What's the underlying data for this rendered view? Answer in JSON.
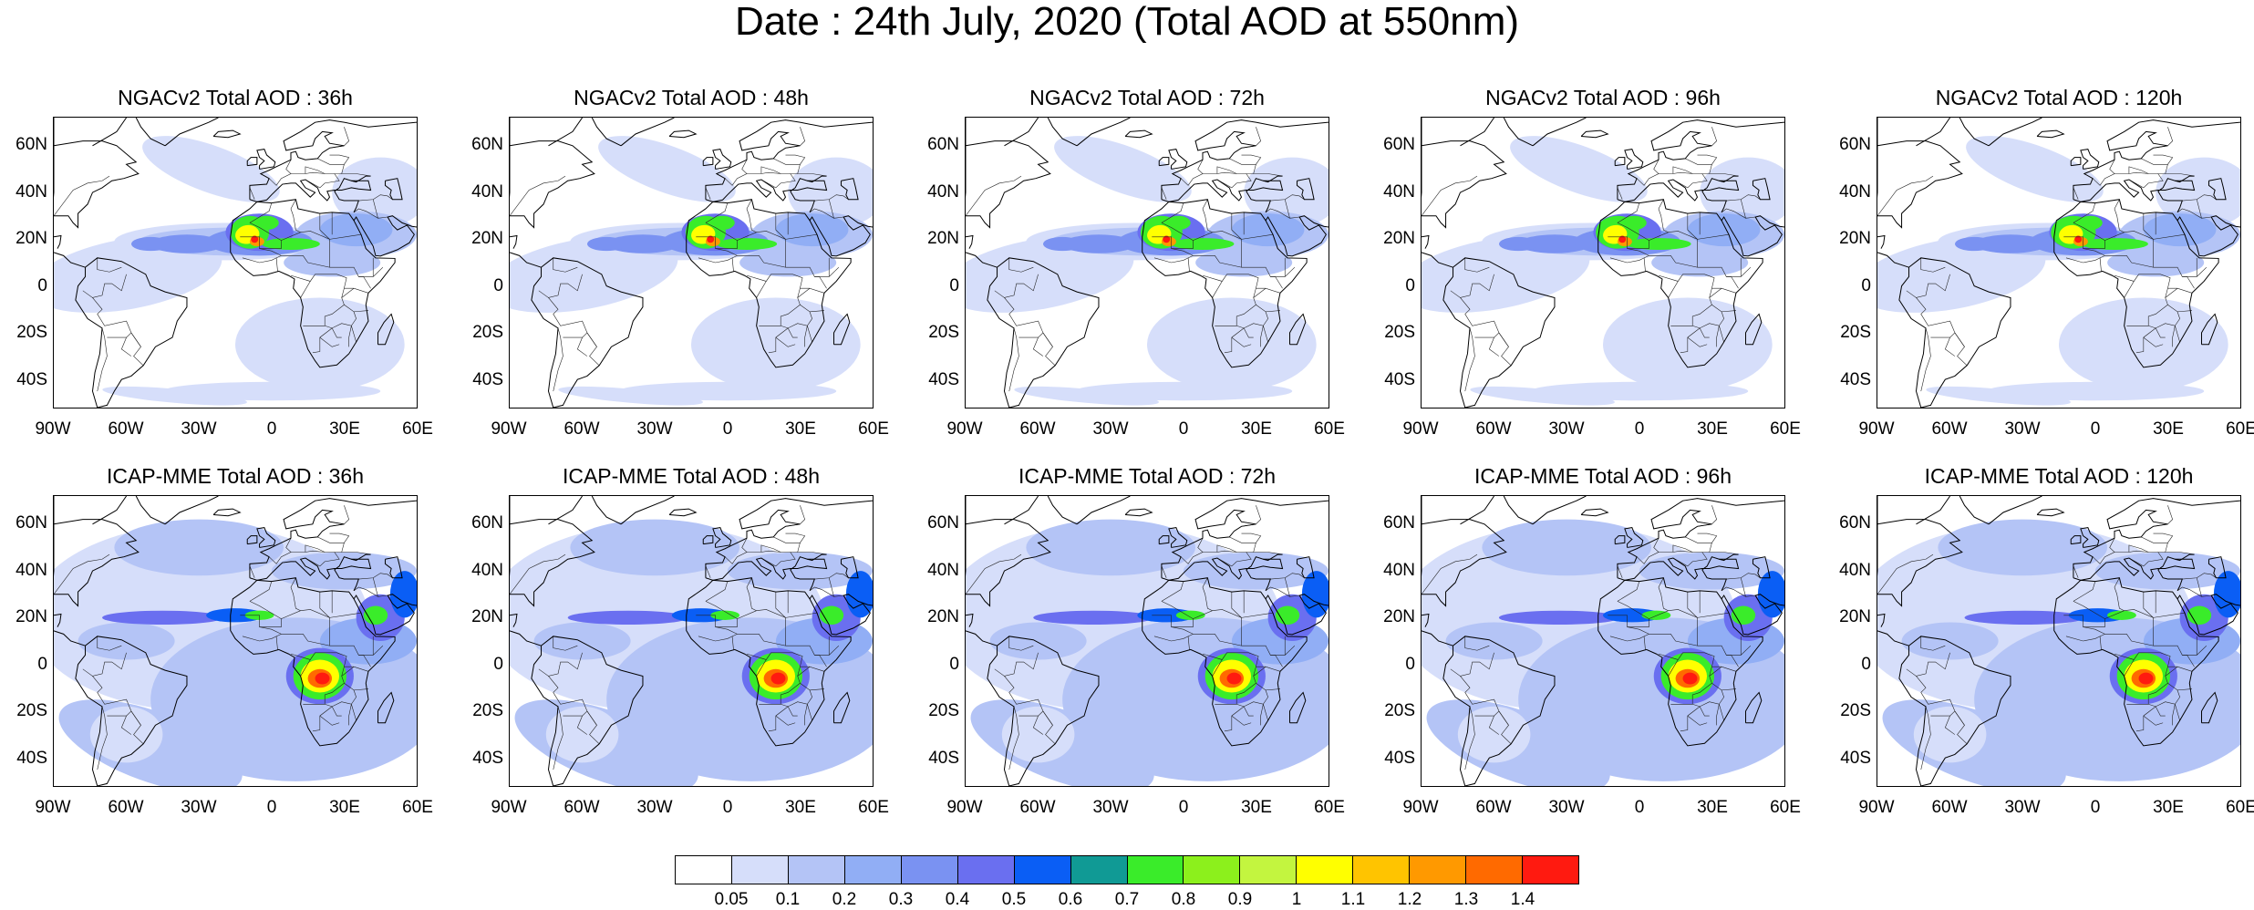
{
  "title": "Date : 24th July, 2020 (Total AOD at 550nm)",
  "panels": [
    {
      "model": "NGACv2",
      "title": "NGACv2 Total AOD : 36h"
    },
    {
      "model": "NGACv2",
      "title": "NGACv2 Total AOD : 48h"
    },
    {
      "model": "NGACv2",
      "title": "NGACv2 Total AOD : 72h"
    },
    {
      "model": "NGACv2",
      "title": "NGACv2 Total AOD : 96h"
    },
    {
      "model": "NGACv2",
      "title": "NGACv2 Total AOD : 120h"
    },
    {
      "model": "ICAP-MME",
      "title": "ICAP-MME Total AOD : 36h"
    },
    {
      "model": "ICAP-MME",
      "title": "ICAP-MME Total AOD : 48h"
    },
    {
      "model": "ICAP-MME",
      "title": "ICAP-MME Total AOD : 72h"
    },
    {
      "model": "ICAP-MME",
      "title": "ICAP-MME Total AOD : 96h"
    },
    {
      "model": "ICAP-MME",
      "title": "ICAP-MME Total AOD : 120h"
    }
  ],
  "lat_ticks": [
    "60N",
    "40N",
    "20N",
    "0",
    "20S",
    "40S"
  ],
  "lon_ticks": [
    "90W",
    "60W",
    "30W",
    "0",
    "30E",
    "60E"
  ],
  "colorbar": {
    "labels": [
      "0.05",
      "0.1",
      "0.2",
      "0.3",
      "0.4",
      "0.5",
      "0.6",
      "0.7",
      "0.8",
      "0.9",
      "1",
      "1.1",
      "1.2",
      "1.3",
      "1.4"
    ],
    "colors": [
      "#ffffff",
      "#d6defa",
      "#b4c4f6",
      "#91aef5",
      "#7a92f2",
      "#6a6ff0",
      "#0a5ef5",
      "#109a95",
      "#3aec2a",
      "#8cf01c",
      "#c3f53f",
      "#ffff00",
      "#ffc400",
      "#ff9900",
      "#ff6a00",
      "#ff1a10"
    ]
  }
}
